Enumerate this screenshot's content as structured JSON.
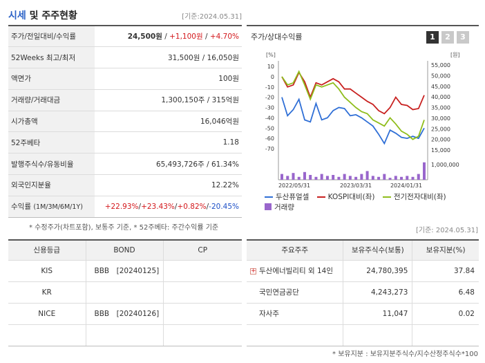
{
  "header": {
    "title_accent": "시세",
    "title_rest": " 및 주주현황",
    "base_date": "[기준:2024.05.31]"
  },
  "quote": {
    "price_label": "주가/전일대비/수익률",
    "price": "24,500원",
    "sep": " / ",
    "change": "+1,100원",
    "change_pct": "+4.70%",
    "w52_label": "52Weeks 최고/최저",
    "w52": "31,500원 / 16,050원",
    "par_label": "액면가",
    "par": "100원",
    "volume_label": "거래량/거래대금",
    "volume": "1,300,150주 / 315억원",
    "mcap_label": "시가총액",
    "mcap": "16,046억원",
    "beta_label": "52주베타",
    "beta": "1.18",
    "shares_label": "발행주식수/유동비율",
    "shares": "65,493,726주 / 61.34%",
    "foreign_label": "외국인지분율",
    "foreign": "12.22%",
    "return_label": "수익률",
    "return_periods": "(1M/3M/6M/1Y)",
    "r1m": "+22.93%",
    "r3m": "+23.43%",
    "r6m": "+0.82%",
    "r1y": "-20.45%",
    "slash": "/"
  },
  "note1": "* 수정주가(차트포함), 보통주 기준, * 52주베타: 주간수익률 기준",
  "chart_panel": {
    "title": "주가/상대수익률",
    "tabs": [
      "1",
      "2",
      "3"
    ],
    "active_tab": "1"
  },
  "chart_data": {
    "type": "line",
    "left_unit": "[%]",
    "right_unit": "[원]",
    "left_ticks": [
      10,
      0,
      -10,
      -20,
      -30,
      -40,
      -50,
      -60,
      -70
    ],
    "right_ticks": [
      "55,000",
      "50,000",
      "45,000",
      "40,000",
      "35,000",
      "30,000",
      "25,000",
      "20,000",
      "15,000"
    ],
    "volume_tick": "1,000,000",
    "x_ticks": [
      "2022/05/31",
      "2023/03/31",
      "2024/01/31"
    ],
    "ylim_left": [
      -70,
      10
    ],
    "series": [
      {
        "name": "두산퓨얼셀",
        "color": "#2f6fd6",
        "values": [
          -20,
          -38,
          -32,
          -22,
          -42,
          -44,
          -26,
          -42,
          -40,
          -33,
          -30,
          -31,
          -38,
          -37,
          -40,
          -44,
          -48,
          -56,
          -65,
          -52,
          -55,
          -59,
          -60,
          -58,
          -60,
          -50
        ]
      },
      {
        "name": "KOSPI대비(좌)",
        "color": "#c8201f",
        "values": [
          0,
          -10,
          -8,
          4,
          -5,
          -20,
          -6,
          -8,
          -5,
          -2,
          -5,
          -12,
          -12,
          -16,
          -20,
          -24,
          -27,
          -33,
          -36,
          -30,
          -20,
          -27,
          -28,
          -32,
          -31,
          -18
        ]
      },
      {
        "name": "전기전자대비(좌)",
        "color": "#8fbd1c",
        "values": [
          0,
          -8,
          -6,
          5,
          -8,
          -22,
          -8,
          -10,
          -8,
          -6,
          -12,
          -20,
          -25,
          -30,
          -34,
          -36,
          -42,
          -45,
          -48,
          -40,
          -46,
          -53,
          -56,
          -61,
          -58,
          -42
        ]
      },
      {
        "name": "거래량",
        "color": "#9966cc",
        "values": [
          0.3,
          0.2,
          0.35,
          0.15,
          0.4,
          0.25,
          0.15,
          0.3,
          0.2,
          0.25,
          0.15,
          0.3,
          0.2,
          0.15,
          0.3,
          0.45,
          0.2,
          0.15,
          0.3,
          0.1,
          0.2,
          0.15,
          0.2,
          0.15,
          0.3,
          0.9
        ]
      }
    ]
  },
  "legend": [
    {
      "label": "두산퓨얼셀",
      "color": "#2f6fd6",
      "kind": "line"
    },
    {
      "label": "KOSPI대비(좌)",
      "color": "#c8201f",
      "kind": "line"
    },
    {
      "label": "전기전자대비(좌)",
      "color": "#8fbd1c",
      "kind": "line"
    },
    {
      "label": "거래량",
      "color": "#9966cc",
      "kind": "bar"
    }
  ],
  "base_date2": "[기준: 2024.05.31]",
  "credit": {
    "headers": [
      "신용등급",
      "BOND",
      "CP"
    ],
    "rows": [
      {
        "agency": "KIS",
        "bond": "BBB　[20240125]",
        "cp": ""
      },
      {
        "agency": "KR",
        "bond": "",
        "cp": ""
      },
      {
        "agency": "NICE",
        "bond": "BBB　[20240126]",
        "cp": ""
      },
      {
        "agency": "",
        "bond": "",
        "cp": ""
      }
    ]
  },
  "holders": {
    "headers": [
      "주요주주",
      "보유주식수(보통)",
      "보유지분(%)"
    ],
    "rows": [
      {
        "name": "두산에너빌리티 외 14인",
        "shares": "24,780,395",
        "pct": "37.84",
        "expand": "+"
      },
      {
        "name": "국민연금공단",
        "shares": "4,243,273",
        "pct": "6.48"
      },
      {
        "name": "자사주",
        "shares": "11,047",
        "pct": "0.02"
      },
      {
        "name": "",
        "shares": "",
        "pct": ""
      }
    ]
  },
  "note2": "* 보유지분 : 보유지분주식수/지수산정주식수*100"
}
